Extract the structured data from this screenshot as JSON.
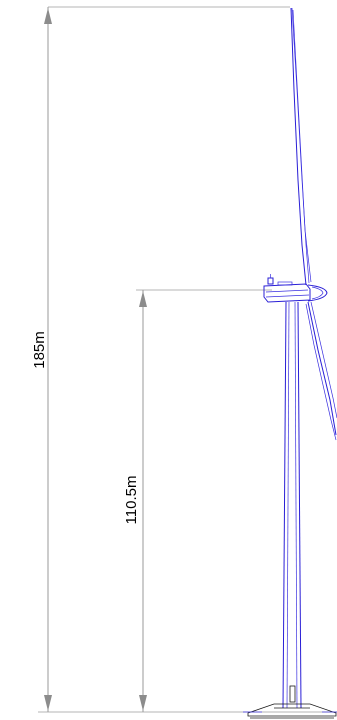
{
  "dimensions": {
    "tip_height": "185m",
    "hub_height": "110.5m"
  },
  "colors": {
    "turbine_outline": "#2a1fd6",
    "dimension_line": "#9a9a9a",
    "text": "#000000"
  }
}
